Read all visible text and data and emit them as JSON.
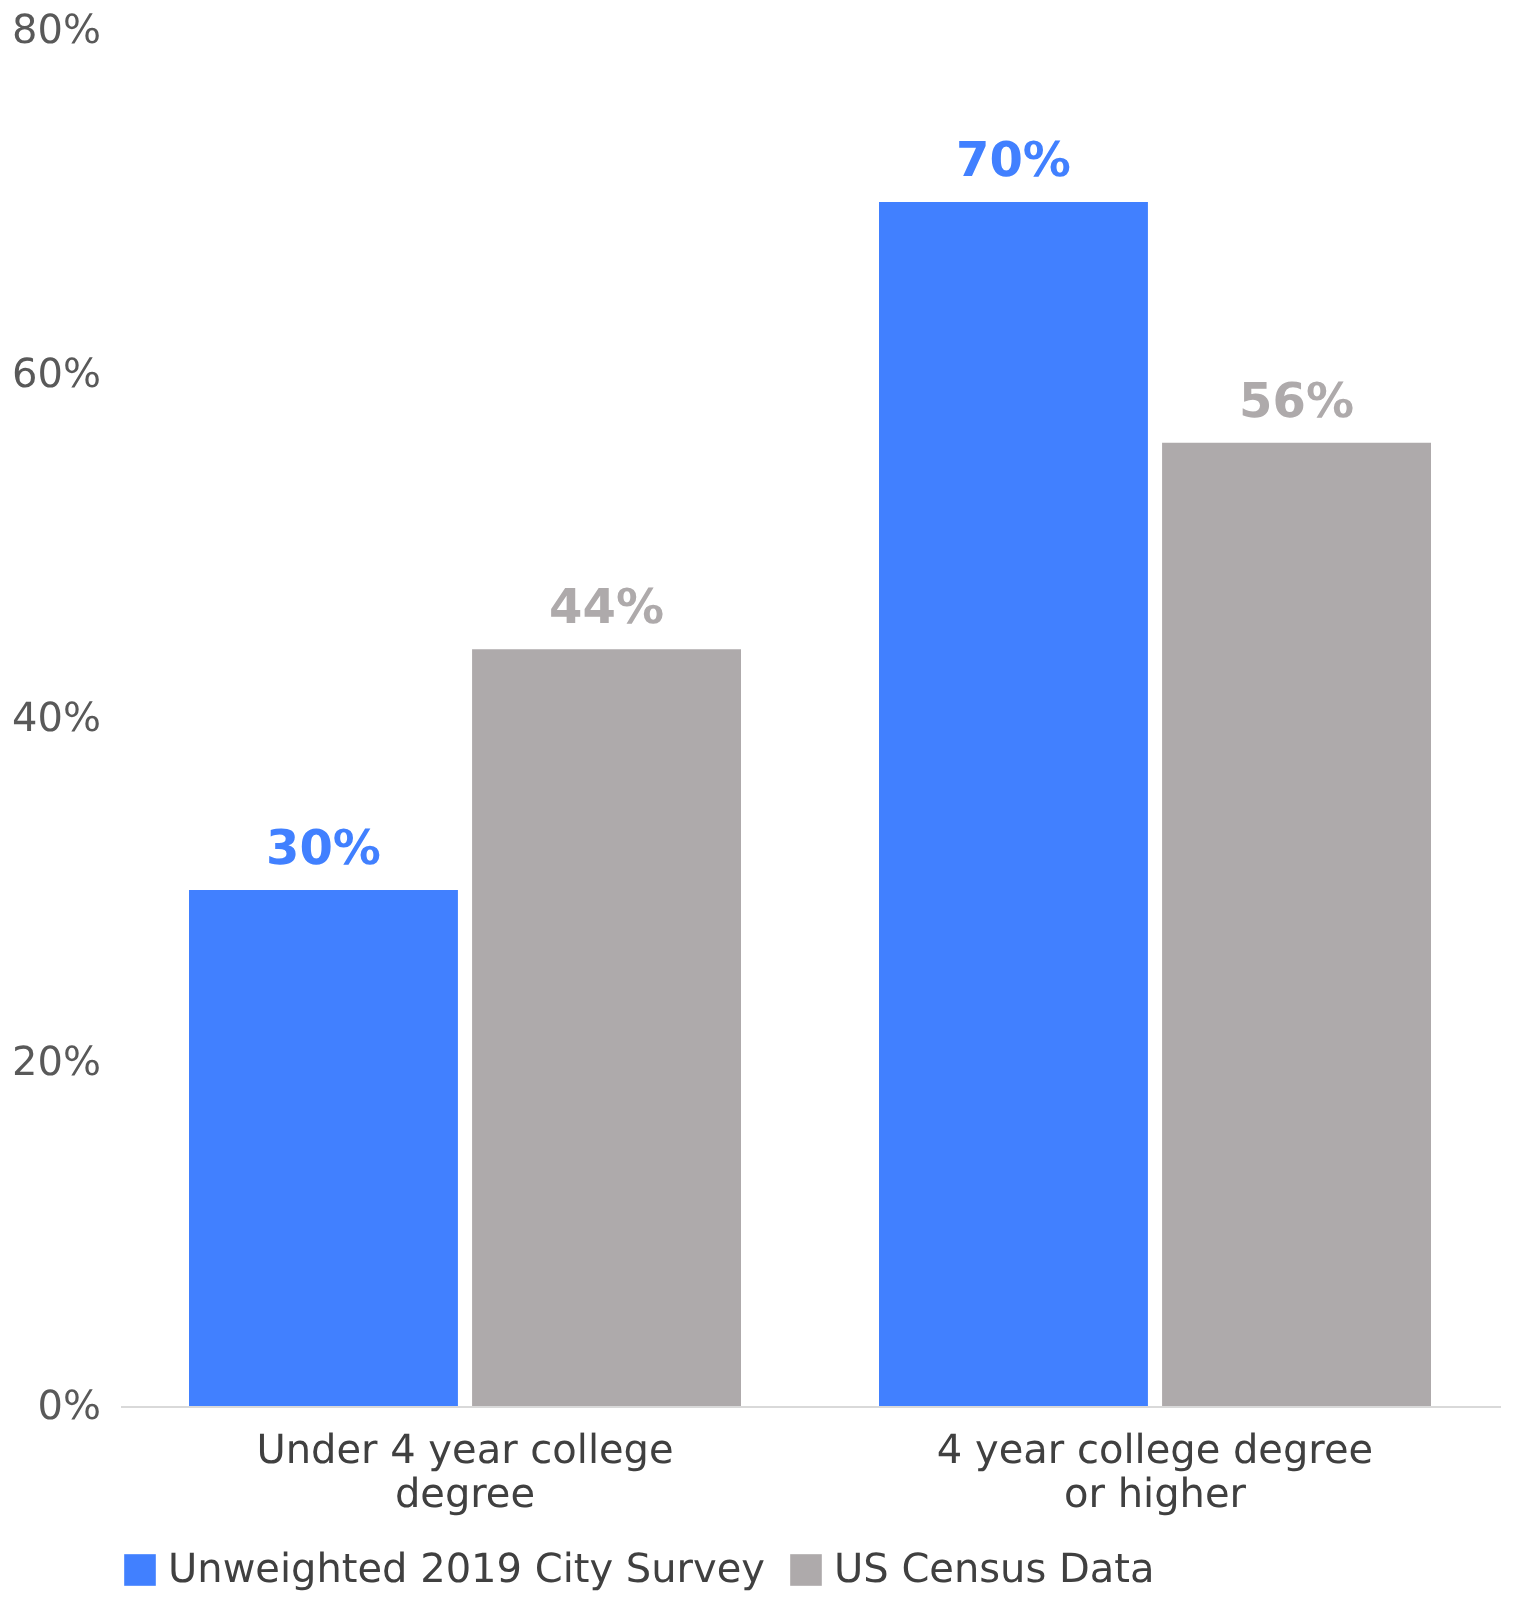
{
  "chart_data": {
    "type": "bar",
    "categories": [
      "Under 4 year college degree",
      "4 year college degree or higher"
    ],
    "series": [
      {
        "name": "Unweighted 2019 City Survey",
        "color": "#4180ff",
        "values": [
          30,
          70
        ]
      },
      {
        "name": "US Census Data",
        "color": "#aeaaab",
        "values": [
          44,
          56
        ]
      }
    ],
    "ylim": [
      0,
      80
    ],
    "yticks": [
      {
        "value": 0,
        "label": "0%"
      },
      {
        "value": 20,
        "label": "20%"
      },
      {
        "value": 40,
        "label": "40%"
      },
      {
        "value": 60,
        "label": "60%"
      },
      {
        "value": 80,
        "label": "80%"
      }
    ],
    "value_labels": [
      [
        "30%",
        "70%"
      ],
      [
        "44%",
        "56%"
      ]
    ],
    "grid": false,
    "legend": "bottom"
  }
}
